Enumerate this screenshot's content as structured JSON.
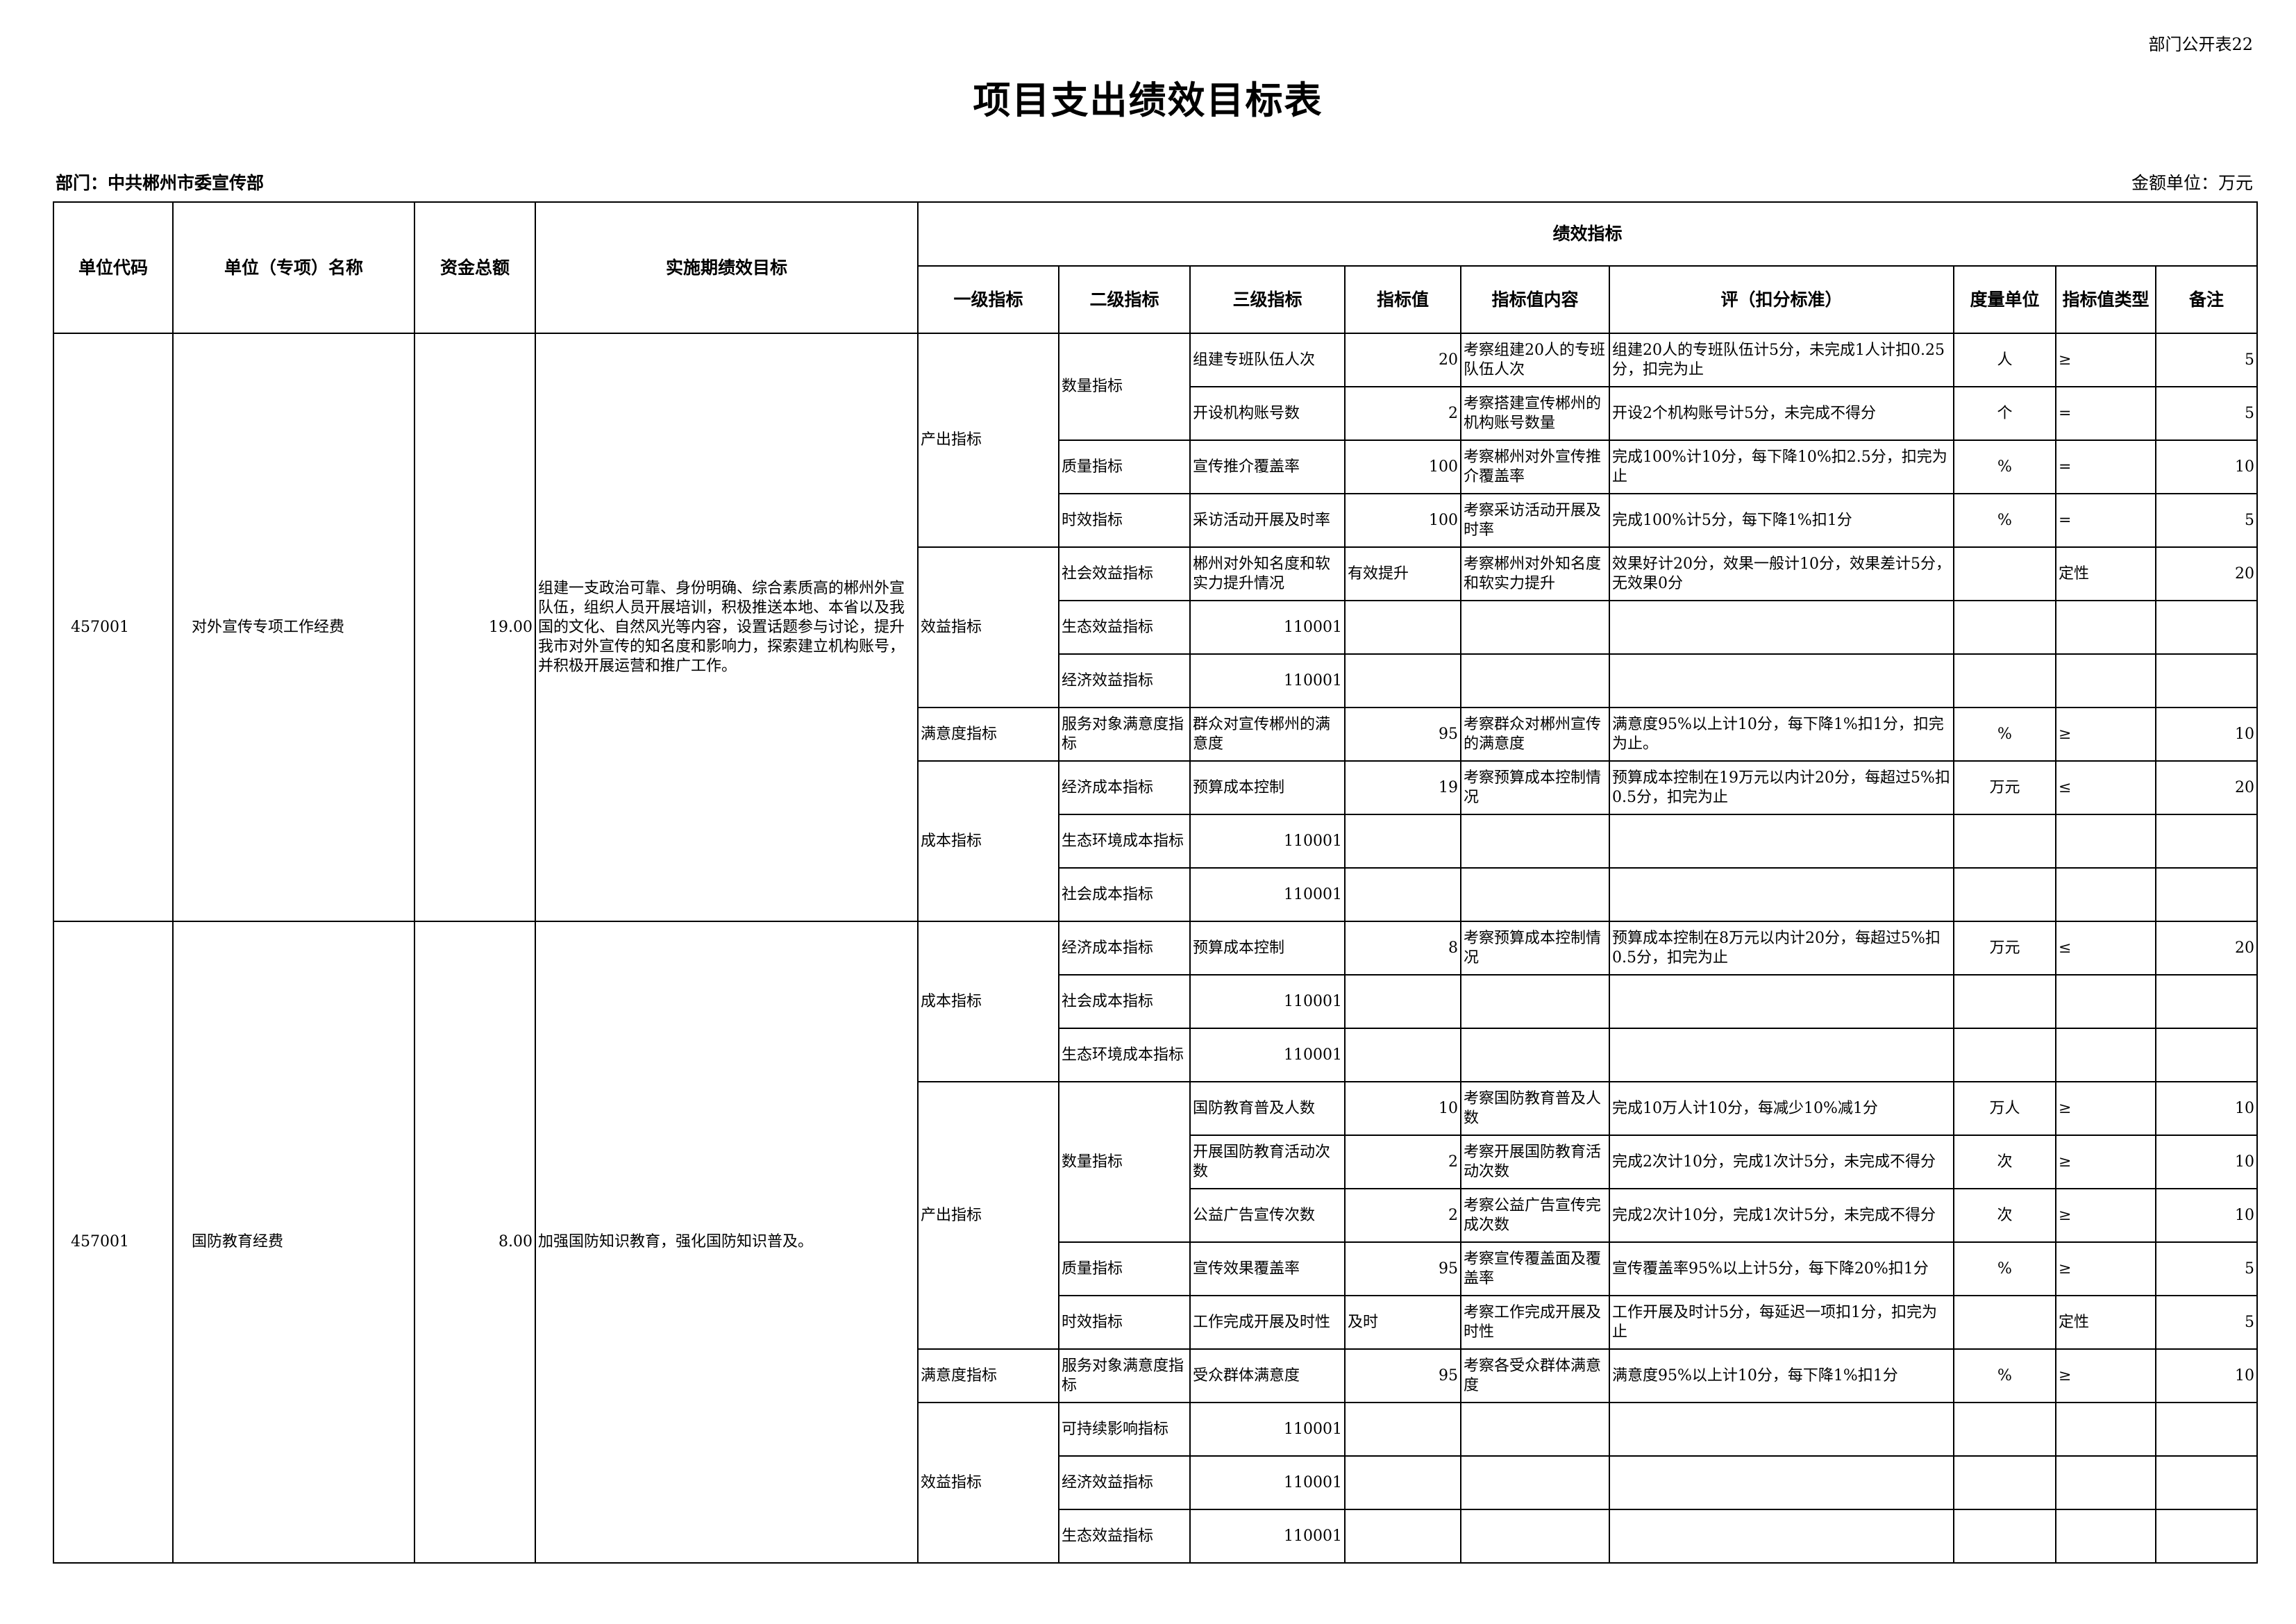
{
  "form_number": "部门公开表22",
  "title": "项目支出绩效目标表",
  "department": "部门：中共郴州市委宣传部",
  "amount_unit": "金额单位：万元",
  "headers": {
    "unit_code": "单位代码",
    "unit_name": "单位（专项）名称",
    "total_funds": "资金总额",
    "period_goal": "实施期绩效目标",
    "performance_indicators": "绩效指标",
    "level1": "一级指标",
    "level2": "二级指标",
    "level3": "三级指标",
    "value": "指标值",
    "value_content": "指标值内容",
    "standard": "评（扣分标准）",
    "measure_unit": "度量单位",
    "value_type": "指标值类型",
    "note": "备注"
  },
  "projects": [
    {
      "code": "457001",
      "name": "对外宣传专项工作经费",
      "amount": "19.00",
      "goal": "组建一支政治可靠、身份明确、综合素质高的郴州外宣队伍，组织人员开展培训，积极推送本地、本省以及我国的文化、自然风光等内容，设置话题参与讨论，提升我市对外宣传的知名度和影响力，探索建立机构账号，并积极开展运营和推广工作。",
      "groups": [
        {
          "l1": "产出指标",
          "subs": [
            {
              "l2": "数量指标",
              "items": [
                {
                  "l3": "组建专班队伍人次",
                  "value": "20",
                  "content": "考察组建20人的专班队伍人次",
                  "standard": "组建20人的专班队伍计5分，未完成1人计扣0.25分，扣完为止",
                  "unit": "人",
                  "type": "≥",
                  "note": "5"
                },
                {
                  "l3": "开设机构账号数",
                  "value": "2",
                  "content": "考察搭建宣传郴州的机构账号数量",
                  "standard": "开设2个机构账号计5分，未完成不得分",
                  "unit": "个",
                  "type": "=",
                  "note": "5"
                }
              ]
            },
            {
              "l2": "质量指标",
              "items": [
                {
                  "l3": "宣传推介覆盖率",
                  "value": "100",
                  "content": "考察郴州对外宣传推介覆盖率",
                  "standard": "完成100%计10分，每下降10%扣2.5分，扣完为止",
                  "unit": "%",
                  "type": "=",
                  "note": "10"
                }
              ]
            },
            {
              "l2": "时效指标",
              "items": [
                {
                  "l3": "采访活动开展及时率",
                  "value": "100",
                  "content": "考察采访活动开展及时率",
                  "standard": "完成100%计5分，每下降1%扣1分",
                  "unit": "%",
                  "type": "=",
                  "note": "5"
                }
              ]
            }
          ]
        },
        {
          "l1": "效益指标",
          "subs": [
            {
              "l2": "社会效益指标",
              "items": [
                {
                  "l3": "郴州对外知名度和软实力提升情况",
                  "value": "有效提升",
                  "content": "考察郴州对外知名度和软实力提升",
                  "standard": "效果好计20分，效果一般计10分，效果差计5分，无效果0分",
                  "unit": "",
                  "type": "定性",
                  "note": "20"
                }
              ]
            },
            {
              "l2": "生态效益指标",
              "items": [
                {
                  "l3": "110001",
                  "value": "",
                  "content": "",
                  "standard": "",
                  "unit": "",
                  "type": "",
                  "note": ""
                }
              ]
            },
            {
              "l2": "经济效益指标",
              "items": [
                {
                  "l3": "110001",
                  "value": "",
                  "content": "",
                  "standard": "",
                  "unit": "",
                  "type": "",
                  "note": ""
                }
              ]
            }
          ]
        },
        {
          "l1": "满意度指标",
          "subs": [
            {
              "l2": "服务对象满意度指标",
              "items": [
                {
                  "l3": "群众对宣传郴州的满意度",
                  "value": "95",
                  "content": "考察群众对郴州宣传的满意度",
                  "standard": "满意度95%以上计10分，每下降1%扣1分，扣完为止。",
                  "unit": "%",
                  "type": "≥",
                  "note": "10"
                }
              ]
            }
          ]
        },
        {
          "l1": "成本指标",
          "subs": [
            {
              "l2": "经济成本指标",
              "items": [
                {
                  "l3": "预算成本控制",
                  "value": "19",
                  "content": "考察预算成本控制情况",
                  "standard": "预算成本控制在19万元以内计20分，每超过5%扣0.5分，扣完为止",
                  "unit": "万元",
                  "type": "≤",
                  "note": "20"
                }
              ]
            },
            {
              "l2": "生态环境成本指标",
              "items": [
                {
                  "l3": "110001",
                  "value": "",
                  "content": "",
                  "standard": "",
                  "unit": "",
                  "type": "",
                  "note": ""
                }
              ]
            },
            {
              "l2": "社会成本指标",
              "items": [
                {
                  "l3": "110001",
                  "value": "",
                  "content": "",
                  "standard": "",
                  "unit": "",
                  "type": "",
                  "note": ""
                }
              ]
            }
          ]
        }
      ]
    },
    {
      "code": "457001",
      "name": "国防教育经费",
      "amount": "8.00",
      "goal": "加强国防知识教育，强化国防知识普及。",
      "groups": [
        {
          "l1": "成本指标",
          "subs": [
            {
              "l2": "经济成本指标",
              "items": [
                {
                  "l3": "预算成本控制",
                  "value": "8",
                  "content": "考察预算成本控制情况",
                  "standard": "预算成本控制在8万元以内计20分，每超过5%扣0.5分，扣完为止",
                  "unit": "万元",
                  "type": "≤",
                  "note": "20"
                }
              ]
            },
            {
              "l2": "社会成本指标",
              "items": [
                {
                  "l3": "110001",
                  "value": "",
                  "content": "",
                  "standard": "",
                  "unit": "",
                  "type": "",
                  "note": ""
                }
              ]
            },
            {
              "l2": "生态环境成本指标",
              "items": [
                {
                  "l3": "110001",
                  "value": "",
                  "content": "",
                  "standard": "",
                  "unit": "",
                  "type": "",
                  "note": ""
                }
              ]
            }
          ]
        },
        {
          "l1": "产出指标",
          "subs": [
            {
              "l2": "数量指标",
              "items": [
                {
                  "l3": "国防教育普及人数",
                  "value": "10",
                  "content": "考察国防教育普及人数",
                  "standard": "完成10万人计10分，每减少10%减1分",
                  "unit": "万人",
                  "type": "≥",
                  "note": "10"
                },
                {
                  "l3": "开展国防教育活动次数",
                  "value": "2",
                  "content": "考察开展国防教育活动次数",
                  "standard": "完成2次计10分，完成1次计5分，未完成不得分",
                  "unit": "次",
                  "type": "≥",
                  "note": "10"
                },
                {
                  "l3": "公益广告宣传次数",
                  "value": "2",
                  "content": "考察公益广告宣传完成次数",
                  "standard": "完成2次计10分，完成1次计5分，未完成不得分",
                  "unit": "次",
                  "type": "≥",
                  "note": "10"
                }
              ]
            },
            {
              "l2": "质量指标",
              "items": [
                {
                  "l3": "宣传效果覆盖率",
                  "value": "95",
                  "content": "考察宣传覆盖面及覆盖率",
                  "standard": "宣传覆盖率95%以上计5分，每下降20%扣1分",
                  "unit": "%",
                  "type": "≥",
                  "note": "5"
                }
              ]
            },
            {
              "l2": "时效指标",
              "items": [
                {
                  "l3": "工作完成开展及时性",
                  "value": "及时",
                  "content": "考察工作完成开展及时性",
                  "standard": "工作开展及时计5分，每延迟一项扣1分，扣完为止",
                  "unit": "",
                  "type": "定性",
                  "note": "5"
                }
              ]
            }
          ]
        },
        {
          "l1": "满意度指标",
          "subs": [
            {
              "l2": "服务对象满意度指标",
              "items": [
                {
                  "l3": "受众群体满意度",
                  "value": "95",
                  "content": "考察各受众群体满意度",
                  "standard": "满意度95%以上计10分，每下降1%扣1分",
                  "unit": "%",
                  "type": "≥",
                  "note": "10"
                }
              ]
            }
          ]
        },
        {
          "l1": "效益指标",
          "subs": [
            {
              "l2": "可持续影响指标",
              "items": [
                {
                  "l3": "110001",
                  "value": "",
                  "content": "",
                  "standard": "",
                  "unit": "",
                  "type": "",
                  "note": ""
                }
              ]
            },
            {
              "l2": "经济效益指标",
              "items": [
                {
                  "l3": "110001",
                  "value": "",
                  "content": "",
                  "standard": "",
                  "unit": "",
                  "type": "",
                  "note": ""
                }
              ]
            },
            {
              "l2": "生态效益指标",
              "items": [
                {
                  "l3": "110001",
                  "value": "",
                  "content": "",
                  "standard": "",
                  "unit": "",
                  "type": "",
                  "note": ""
                }
              ]
            }
          ]
        }
      ]
    }
  ]
}
